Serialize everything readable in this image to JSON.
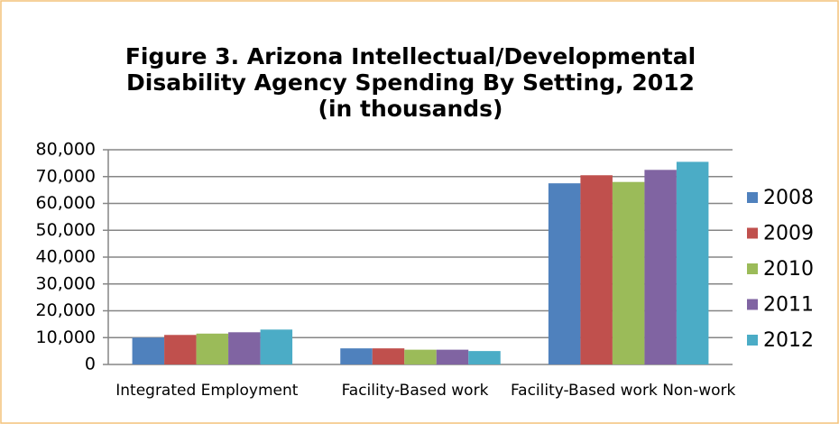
{
  "chart_data": {
    "type": "bar",
    "title": [
      "Figure 3. Arizona Intellectual/Developmental",
      "Disability  Agency Spending By Setting, 2012",
      "(in thousands)"
    ],
    "categories": [
      "Integrated Employment",
      "Facility-Based work",
      "Facility-Based work Non-work"
    ],
    "series": [
      {
        "name": "2008",
        "color": "#4f81bd",
        "values": [
          10000,
          6000,
          67500
        ]
      },
      {
        "name": "2009",
        "color": "#c0504d",
        "values": [
          11000,
          6000,
          70500
        ]
      },
      {
        "name": "2010",
        "color": "#9bbb59",
        "values": [
          11500,
          5500,
          68000
        ]
      },
      {
        "name": "2011",
        "color": "#8064a2",
        "values": [
          12000,
          5500,
          72500
        ]
      },
      {
        "name": "2012",
        "color": "#4bacc6",
        "values": [
          13000,
          5000,
          75500
        ]
      }
    ],
    "ylim": [
      0,
      80000
    ],
    "yticks": [
      0,
      {
        "value": 10000,
        "label": "10,000"
      },
      {
        "value": 20000,
        "label": "20,000"
      },
      {
        "value": 30000,
        "label": "30,000"
      },
      {
        "value": 40000,
        "label": "40,000"
      },
      {
        "value": 50000,
        "label": "50,000"
      },
      {
        "value": 60000,
        "label": "60,000"
      },
      {
        "value": 70000,
        "label": "70,000"
      },
      {
        "value": 80000,
        "label": "80,000"
      }
    ],
    "grid": true,
    "legend": "right"
  }
}
